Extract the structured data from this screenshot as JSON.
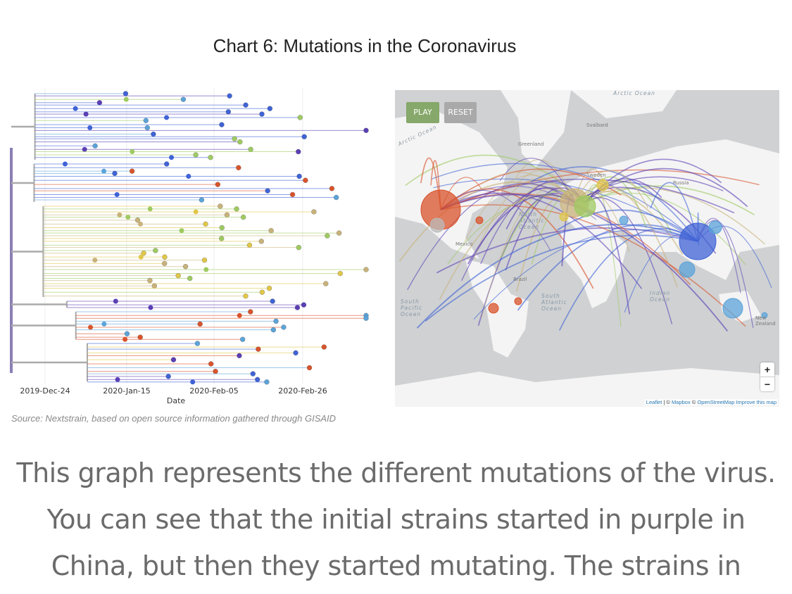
{
  "title": "Chart 6: Mutations in the Coronavirus",
  "chart_data": {
    "type": "phylogenetic-tree",
    "title": "Chart 6: Mutations in the Coronavirus",
    "xlabel": "Date",
    "x_ticks": [
      "2019-Dec-24",
      "2020-Jan-15",
      "2020-Feb-05",
      "2020-Feb-26"
    ],
    "clade_colors": [
      "#5b3fb5",
      "#3f63d6",
      "#5ba3d9",
      "#c8b27a",
      "#e0c74a",
      "#9fca62",
      "#d9532b"
    ]
  },
  "source": "Source: Nextstrain, based on open source information gathered through GISAID",
  "map": {
    "play_label": "PLAY",
    "reset_label": "RESET",
    "zoom_in": "+",
    "zoom_out": "−",
    "attribution": {
      "leaflet": "Leaflet",
      "sep": " | © ",
      "mapbox": "Mapbox",
      "osm_prefix": " © ",
      "osm": "OpenStreetMap",
      "improve": " Improve this map"
    },
    "labels": {
      "arctic": "Arctic Ocean",
      "arctic_top": "Arctic Ocean",
      "greenland": "Greenland",
      "svalbard": "Svalbard",
      "sweden": "Sweden",
      "russia": "Russia",
      "north_atlantic": "North Atlantic Ocean",
      "south_atlantic": "South Atlantic Ocean",
      "south_pacific": "South Pacific Ocean",
      "indian": "Indian Ocean",
      "brazil": "Brazil",
      "mexico": "Mexico",
      "new_zealand": "New Zealand"
    }
  },
  "body_lines": [
    "This graph represents the different mutations of the virus.",
    "You can see that the initial strains started in purple in",
    "China, but then they started mutating. The strains in"
  ]
}
